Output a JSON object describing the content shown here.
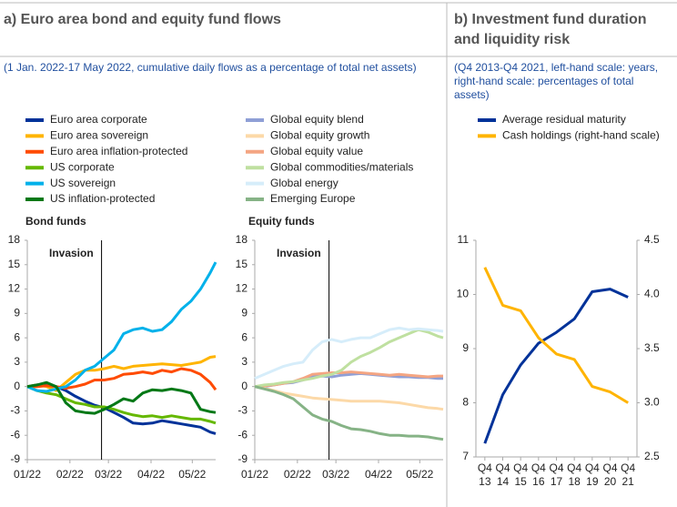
{
  "panels": [
    {
      "title": "a) Euro area bond and equity fund flows",
      "subtitle": "(1 Jan. 2022-17 May 2022, cumulative daily flows as a percentage of total net assets)"
    },
    {
      "title": [
        "b) Investment fund duration",
        "and liquidity risk"
      ],
      "subtitle": [
        "(Q4 2013-Q4 2021, left-hand scale: years,",
        "right-hand scale: percentages of total",
        "assets)"
      ]
    }
  ],
  "chart_data": [
    {
      "type": "line",
      "title": "Bond funds",
      "x": [
        0,
        7,
        14,
        21,
        28,
        35,
        42,
        49,
        56,
        63,
        70,
        77,
        84,
        91,
        98,
        105,
        112,
        119,
        126,
        133,
        137
      ],
      "xlim": [
        0,
        137
      ],
      "xticks": [
        {
          "value": 0,
          "label": "01/22"
        },
        {
          "value": 31,
          "label": "02/22"
        },
        {
          "value": 59,
          "label": "03/22"
        },
        {
          "value": 90,
          "label": "04/22"
        },
        {
          "value": 120,
          "label": "05/22"
        }
      ],
      "ylim": [
        -9,
        18
      ],
      "yticks": [
        -9,
        -6,
        -3,
        0,
        3,
        6,
        9,
        12,
        15,
        18
      ],
      "annotations": [
        {
          "text": "Invasion",
          "x": 54
        }
      ],
      "series": [
        {
          "name": "Euro area corporate",
          "color": "#003299",
          "values": [
            0,
            0.2,
            0.3,
            0,
            -0.5,
            -1.2,
            -1.8,
            -2.3,
            -2.6,
            -3.2,
            -3.8,
            -4.5,
            -4.6,
            -4.5,
            -4.2,
            -4.4,
            -4.6,
            -4.8,
            -5.0,
            -5.6,
            -5.8
          ]
        },
        {
          "name": "Euro area sovereign",
          "color": "#ffb400",
          "values": [
            0,
            0.2,
            0,
            -0.5,
            0.5,
            1.5,
            2,
            2,
            2.2,
            2.5,
            2.2,
            2.5,
            2.6,
            2.7,
            2.8,
            2.7,
            2.6,
            2.8,
            3.0,
            3.6,
            3.7
          ]
        },
        {
          "name": "Euro area inflation-protected",
          "color": "#ff4b00",
          "values": [
            0,
            0,
            0.1,
            0,
            -0.2,
            0,
            0.3,
            0.8,
            0.8,
            1,
            1.5,
            1.6,
            1.8,
            1.6,
            2,
            1.8,
            2.2,
            2,
            1.5,
            0.5,
            -0.4
          ]
        },
        {
          "name": "US corporate",
          "color": "#65b800",
          "values": [
            0,
            -0.5,
            -0.8,
            -1,
            -1.5,
            -2,
            -2.2,
            -2.5,
            -2.5,
            -2.8,
            -3.2,
            -3.5,
            -3.7,
            -3.6,
            -3.8,
            -3.6,
            -3.8,
            -4.0,
            -4.0,
            -4.3,
            -4.5
          ]
        },
        {
          "name": "US sovereign",
          "color": "#00b1ea",
          "values": [
            0,
            -0.5,
            -0.6,
            -0.3,
            0,
            0.8,
            2.0,
            2.5,
            3.5,
            4.5,
            6.5,
            7,
            7.2,
            6.8,
            7.0,
            8,
            9.5,
            10.5,
            12,
            14,
            15.3
          ]
        },
        {
          "name": "US inflation-protected",
          "color": "#007816",
          "values": [
            0,
            0.2,
            0.5,
            0,
            -2,
            -3,
            -3.2,
            -3.3,
            -2.8,
            -2.2,
            -1.5,
            -1.8,
            -0.8,
            -0.4,
            -0.5,
            -0.3,
            -0.5,
            -0.8,
            -2.8,
            -3.1,
            -3.2
          ]
        }
      ]
    },
    {
      "type": "line",
      "title": "Equity funds",
      "x": [
        0,
        7,
        14,
        21,
        28,
        35,
        42,
        49,
        56,
        63,
        70,
        77,
        84,
        91,
        98,
        105,
        112,
        119,
        126,
        133,
        137
      ],
      "xlim": [
        0,
        137
      ],
      "xticks": [
        {
          "value": 0,
          "label": "01/22"
        },
        {
          "value": 31,
          "label": "02/22"
        },
        {
          "value": 59,
          "label": "03/22"
        },
        {
          "value": 90,
          "label": "04/22"
        },
        {
          "value": 120,
          "label": "05/22"
        }
      ],
      "ylim": [
        -9,
        18
      ],
      "yticks": [
        -9,
        -6,
        -3,
        0,
        3,
        6,
        9,
        12,
        15,
        18
      ],
      "annotations": [
        {
          "text": "Invasion",
          "x": 54
        }
      ],
      "series": [
        {
          "name": "Global equity blend",
          "color": "#8f9fd6",
          "values": [
            0,
            0,
            0.2,
            0.4,
            0.5,
            0.8,
            1.2,
            1.3,
            1.2,
            1.4,
            1.5,
            1.6,
            1.5,
            1.4,
            1.3,
            1.2,
            1.2,
            1.1,
            1.1,
            1.0,
            1.0
          ]
        },
        {
          "name": "Global equity growth",
          "color": "#fcd9a8",
          "values": [
            0,
            -0.2,
            -0.5,
            -0.8,
            -1.0,
            -1.2,
            -1.4,
            -1.5,
            -1.6,
            -1.7,
            -1.8,
            -1.8,
            -1.8,
            -1.8,
            -1.9,
            -2.0,
            -2.2,
            -2.4,
            -2.6,
            -2.7,
            -2.8
          ]
        },
        {
          "name": "Global equity value",
          "color": "#f4a582",
          "values": [
            0,
            0.1,
            0.2,
            0.4,
            0.6,
            1,
            1.5,
            1.6,
            1.7,
            1.7,
            1.8,
            1.7,
            1.6,
            1.5,
            1.4,
            1.5,
            1.4,
            1.3,
            1.2,
            1.3,
            1.3
          ]
        },
        {
          "name": "Global commodities/materials",
          "color": "#bfe0a0",
          "values": [
            0,
            0.2,
            0.3,
            0.5,
            0.6,
            0.8,
            1,
            1.3,
            1.5,
            2,
            3,
            3.7,
            4.2,
            4.8,
            5.5,
            6,
            6.5,
            7.0,
            6.7,
            6.2,
            6.0
          ]
        },
        {
          "name": "Global energy",
          "color": "#d6edfa",
          "values": [
            1,
            1.5,
            2,
            2.5,
            2.8,
            3,
            4.5,
            5.5,
            5.8,
            5.5,
            5.8,
            6.0,
            6.0,
            6.5,
            7.0,
            7.2,
            7.0,
            7.1,
            7.0,
            6.9,
            6.8
          ]
        },
        {
          "name": "Emerging Europe",
          "color": "#86b386",
          "values": [
            0,
            -0.3,
            -0.6,
            -1.0,
            -1.5,
            -2.5,
            -3.5,
            -4,
            -4.3,
            -4.8,
            -5.2,
            -5.3,
            -5.5,
            -5.8,
            -6,
            -6,
            -6.1,
            -6.1,
            -6.2,
            -6.4,
            -6.5
          ]
        }
      ]
    },
    {
      "type": "line",
      "categories": [
        [
          "Q4",
          "13"
        ],
        [
          "Q4",
          "14"
        ],
        [
          "Q4",
          "15"
        ],
        [
          "Q4",
          "16"
        ],
        [
          "Q4",
          "17"
        ],
        [
          "Q4",
          "18"
        ],
        [
          "Q4",
          "19"
        ],
        [
          "Q4",
          "20"
        ],
        [
          "Q4",
          "21"
        ]
      ],
      "ylim": [
        7,
        11
      ],
      "yticks": [
        7,
        8,
        9,
        10,
        11
      ],
      "y2lim": [
        2.5,
        4.5
      ],
      "y2ticks": [
        2.5,
        {
          "value": 3,
          "label": "3.0"
        },
        3.5,
        {
          "value": 4,
          "label": "4.0"
        },
        4.5
      ],
      "series": [
        {
          "name": "Average residual maturity",
          "color": "#003299",
          "values": [
            7.25,
            8.15,
            8.7,
            9.1,
            9.3,
            9.55,
            10.05,
            10.1,
            9.95
          ]
        },
        {
          "name": "Cash holdings (right-hand scale)",
          "color": "#ffb400",
          "axis": "y2",
          "values": [
            4.25,
            3.9,
            3.85,
            3.6,
            3.45,
            3.4,
            3.15,
            3.1,
            3.0
          ]
        }
      ]
    }
  ]
}
